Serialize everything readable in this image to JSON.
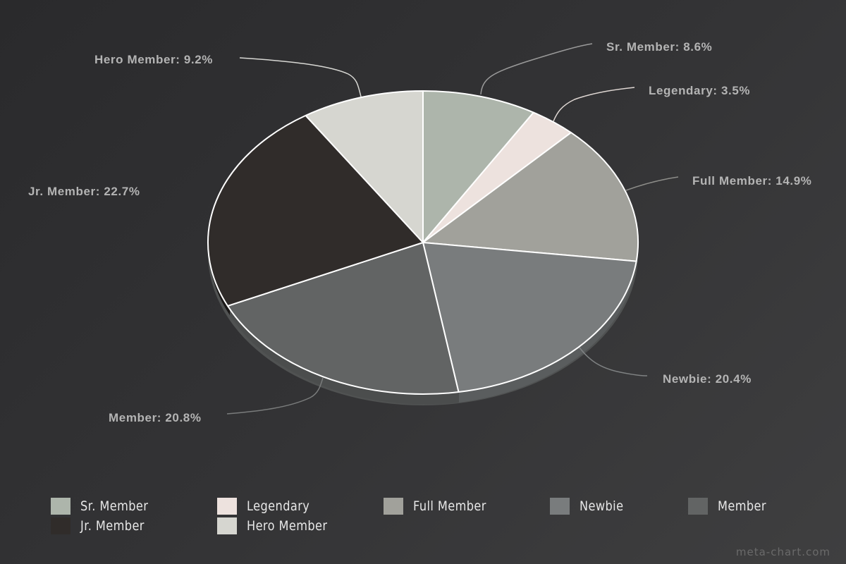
{
  "chart_data": {
    "type": "pie",
    "title": "",
    "style": "3d-tilted",
    "start_angle_deg": -90,
    "direction": "clockwise",
    "categories": [
      "Sr. Member",
      "Legendary",
      "Full Member",
      "Newbie",
      "Member",
      "Jr. Member",
      "Hero Member"
    ],
    "values": [
      8.6,
      3.5,
      14.9,
      20.4,
      20.8,
      22.7,
      9.2
    ],
    "unit": "%",
    "colors": [
      "#adb5ab",
      "#ede2de",
      "#a1a19b",
      "#797c7d",
      "#626464",
      "#302c2a",
      "#d6d6d0"
    ],
    "data_labels": [
      "Sr. Member: 8.6%",
      "Legendary: 3.5%",
      "Full Member: 14.9%",
      "Newbie: 20.4%",
      "Member: 20.8%",
      "Jr. Member: 22.7%",
      "Hero Member: 9.2%"
    ],
    "legend_position": "bottom"
  },
  "labels": {
    "sr_member": "Sr. Member: 8.6%",
    "legendary": "Legendary: 3.5%",
    "full_member": "Full Member: 14.9%",
    "newbie": "Newbie: 20.4%",
    "member": "Member: 20.8%",
    "jr_member": "Jr. Member: 22.7%",
    "hero_member": "Hero Member: 9.2%"
  },
  "legend": {
    "items": [
      {
        "label": "Sr. Member",
        "color": "#adb5ab"
      },
      {
        "label": "Legendary",
        "color": "#ede2de"
      },
      {
        "label": "Full Member",
        "color": "#a1a19b"
      },
      {
        "label": "Newbie",
        "color": "#797c7d"
      },
      {
        "label": "Member",
        "color": "#626464"
      },
      {
        "label": "Jr. Member",
        "color": "#302c2a"
      },
      {
        "label": "Hero Member",
        "color": "#d6d6d0"
      }
    ]
  },
  "watermark": "meta-chart.com"
}
